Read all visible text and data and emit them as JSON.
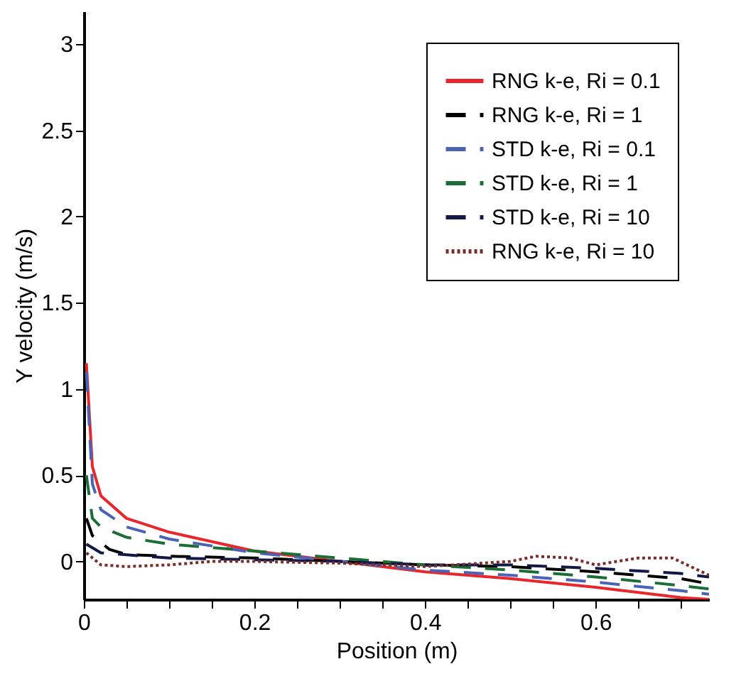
{
  "chart_data": {
    "type": "line",
    "xlabel": "Position (m)",
    "ylabel": "Y velocity (m/s)",
    "xlim": [
      0,
      0.733
    ],
    "ylim": [
      -0.22,
      3.19
    ],
    "xticks": [
      0,
      {
        "value": 0.05,
        "label": null
      },
      {
        "value": 0.1,
        "label": null
      },
      {
        "value": 0.15,
        "label": null
      },
      0.2,
      {
        "value": 0.25,
        "label": null
      },
      {
        "value": 0.3,
        "label": null
      },
      {
        "value": 0.35,
        "label": null
      },
      0.4,
      {
        "value": 0.45,
        "label": null
      },
      {
        "value": 0.5,
        "label": null
      },
      {
        "value": 0.55,
        "label": null
      },
      0.6,
      {
        "value": 0.65,
        "label": null
      },
      {
        "value": 0.7,
        "label": null
      }
    ],
    "yticks": [
      0,
      0.5,
      1,
      1.5,
      2,
      2.5,
      3
    ],
    "grid": false,
    "legend": "top right",
    "marker": "none",
    "x": [
      0.003,
      0.01,
      0.02,
      0.05,
      0.1,
      0.2,
      0.3,
      0.4,
      0.5,
      0.6,
      0.7,
      0.733
    ],
    "series": [
      {
        "name": "RNG k-e, Ri = 0.1",
        "color": "#e8262b",
        "line_style": "solid",
        "values": [
          1.15,
          0.55,
          0.38,
          0.25,
          0.17,
          0.06,
          0.0,
          -0.06,
          -0.1,
          -0.15,
          -0.21,
          -0.22
        ]
      },
      {
        "name": "RNG k-e, Ri = 1",
        "color": "#000000",
        "line_style": "dashed",
        "x": [
          0.003,
          0.01,
          0.03,
          0.05,
          0.1,
          0.2,
          0.3,
          0.4,
          0.5,
          0.6,
          0.7,
          0.733
        ],
        "values": [
          0.25,
          0.15,
          0.07,
          0.04,
          0.03,
          0.02,
          0.0,
          -0.02,
          -0.03,
          -0.06,
          -0.1,
          -0.13
        ]
      },
      {
        "name": "STD k-e, Ri = 0.1",
        "color": "#4a63b5",
        "line_style": "dashed",
        "values": [
          1.1,
          0.45,
          0.3,
          0.2,
          0.13,
          0.05,
          0.0,
          -0.05,
          -0.08,
          -0.12,
          -0.17,
          -0.19
        ]
      },
      {
        "name": "STD k-e, Ri = 1",
        "color": "#1a6e35",
        "line_style": "dashed",
        "values": [
          0.5,
          0.25,
          0.2,
          0.14,
          0.1,
          0.06,
          0.02,
          -0.02,
          -0.05,
          -0.09,
          -0.14,
          -0.16
        ]
      },
      {
        "name": "STD k-e, Ri = 10",
        "color": "#141846",
        "line_style": "dashed",
        "x": [
          0.003,
          0.02,
          0.1,
          0.2,
          0.3,
          0.4,
          0.5,
          0.6,
          0.7,
          0.733
        ],
        "values": [
          0.1,
          0.05,
          0.02,
          0.01,
          0.0,
          -0.02,
          -0.02,
          -0.04,
          -0.07,
          -0.09
        ]
      },
      {
        "name": "RNG k-e, Ri = 10",
        "color": "#7a2e2a",
        "line_style": "dotted",
        "x": [
          0.003,
          0.02,
          0.05,
          0.1,
          0.15,
          0.2,
          0.3,
          0.4,
          0.5,
          0.53,
          0.57,
          0.6,
          0.65,
          0.69,
          0.733
        ],
        "values": [
          0.05,
          -0.02,
          -0.03,
          -0.02,
          0.0,
          0.0,
          -0.01,
          -0.03,
          0.0,
          0.03,
          0.02,
          -0.02,
          0.02,
          0.02,
          -0.08
        ]
      }
    ]
  }
}
